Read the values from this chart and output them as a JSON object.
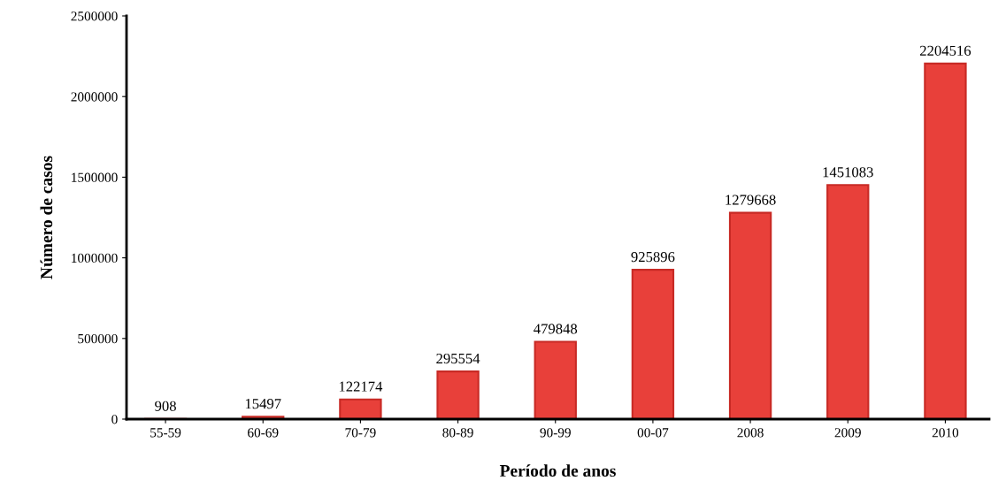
{
  "chart_data": {
    "type": "bar",
    "xlabel": "Período de anos",
    "ylabel": "Número de casos",
    "categories": [
      "55-59",
      "60-69",
      "70-79",
      "80-89",
      "90-99",
      "00-07",
      "2008",
      "2009",
      "2010"
    ],
    "values": [
      908,
      15497,
      122174,
      295554,
      479848,
      925896,
      1279668,
      1451083,
      2204516
    ],
    "color": "#e8403a",
    "ylim": [
      0,
      2500000
    ],
    "yticks": [
      0,
      500000,
      1000000,
      1500000,
      2000000,
      2500000
    ],
    "data_labels": true,
    "grid": false
  }
}
